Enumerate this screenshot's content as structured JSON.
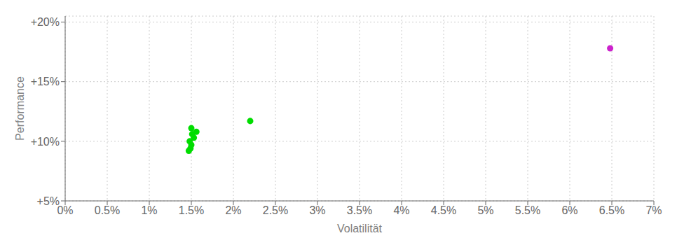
{
  "chart_data": {
    "type": "scatter",
    "x_label": "Volatilität",
    "y_label": "Performance",
    "xlim": [
      0,
      0.07
    ],
    "ylim": [
      0.05,
      0.205
    ],
    "xticks": [
      {
        "value": 0.0,
        "label": "0%"
      },
      {
        "value": 0.005,
        "label": "0.5%"
      },
      {
        "value": 0.01,
        "label": "1%"
      },
      {
        "value": 0.015,
        "label": "1.5%"
      },
      {
        "value": 0.02,
        "label": "2%"
      },
      {
        "value": 0.025,
        "label": "2.5%"
      },
      {
        "value": 0.03,
        "label": "3%"
      },
      {
        "value": 0.035,
        "label": "3.5%"
      },
      {
        "value": 0.04,
        "label": "4%"
      },
      {
        "value": 0.045,
        "label": "4.5%"
      },
      {
        "value": 0.05,
        "label": "5%"
      },
      {
        "value": 0.055,
        "label": "5.5%"
      },
      {
        "value": 0.06,
        "label": "6%"
      },
      {
        "value": 0.065,
        "label": "6.5%"
      },
      {
        "value": 0.07,
        "label": "7%"
      }
    ],
    "yticks": [
      {
        "value": 0.05,
        "label": "+5%"
      },
      {
        "value": 0.1,
        "label": "+10%"
      },
      {
        "value": 0.15,
        "label": "+15%"
      },
      {
        "value": 0.2,
        "label": "+20%"
      }
    ],
    "grid": true,
    "series": [
      {
        "color": "#00dd00",
        "x": [
          0.0147,
          0.0149,
          0.015,
          0.0148,
          0.0153,
          0.0151,
          0.0156,
          0.015,
          0.022
        ],
        "values": [
          0.092,
          0.094,
          0.097,
          0.1,
          0.103,
          0.106,
          0.108,
          0.111,
          0.117
        ]
      },
      {
        "color": "#cc22cc",
        "x": [
          0.0648
        ],
        "values": [
          0.178
        ]
      }
    ]
  }
}
